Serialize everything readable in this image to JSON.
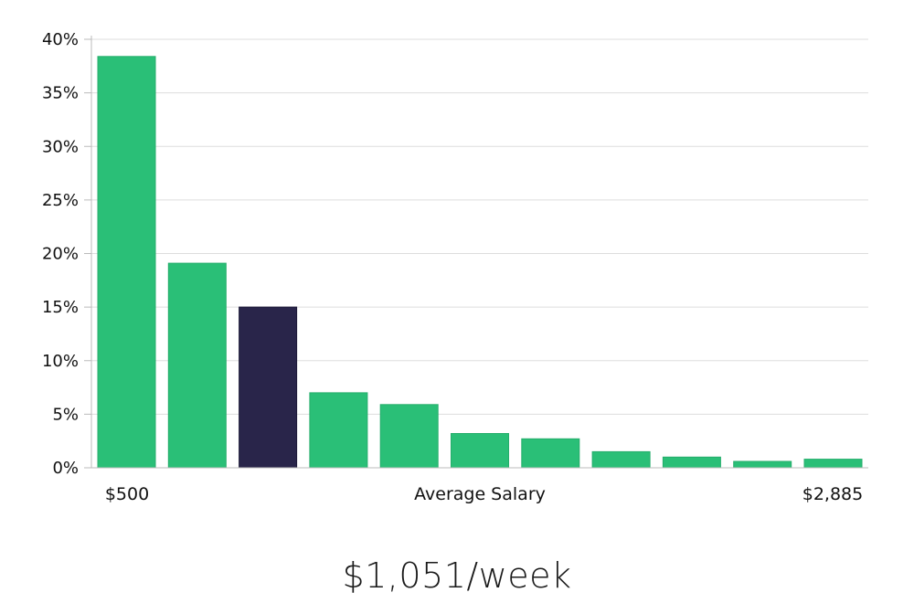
{
  "chart_data": {
    "type": "bar",
    "title": "",
    "xlabel": "Average Salary",
    "ylabel": "",
    "x_start_label": "$500",
    "x_end_label": "$2,885",
    "y_ticks": [
      "0%",
      "5%",
      "10%",
      "15%",
      "20%",
      "25%",
      "30%",
      "35%",
      "40%"
    ],
    "ylim": [
      0,
      40
    ],
    "grid": true,
    "values": [
      38.4,
      19.1,
      15.0,
      7.0,
      5.9,
      3.2,
      2.7,
      1.5,
      1.0,
      0.6,
      0.8
    ],
    "highlight_index": 2,
    "colors": {
      "bar": "#2abf77",
      "highlight": "#29254a",
      "grid": "#dddddd",
      "axis": "#bbbbbb"
    }
  },
  "summary": {
    "value": "$1,051/week"
  }
}
